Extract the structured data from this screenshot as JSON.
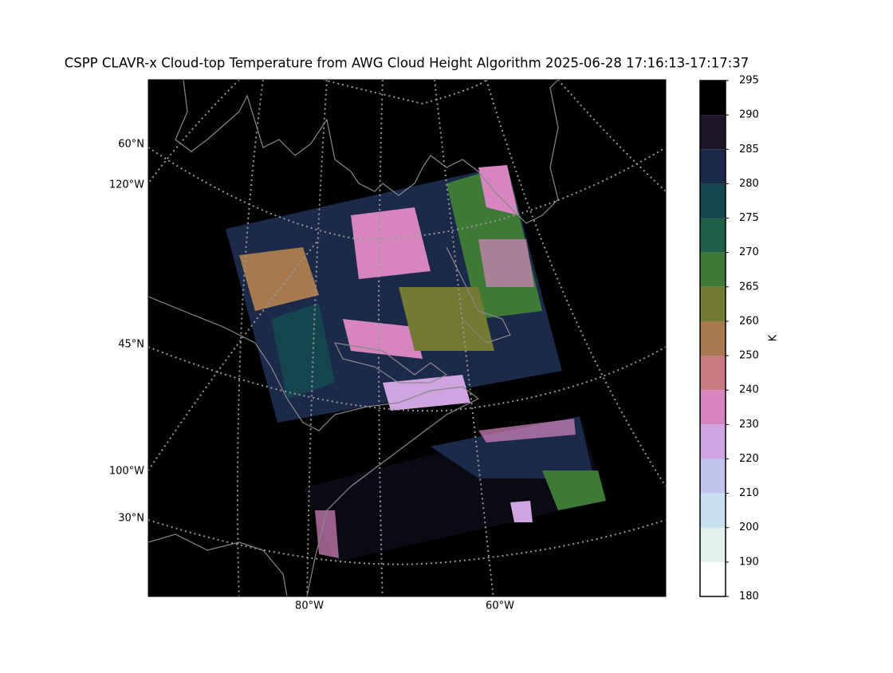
{
  "title": "CSPP CLAVR-x Cloud-top Temperature from AWG Cloud Height Algorithm 2025-06-28 17:16:13-17:17:37",
  "map": {
    "lat_labels": [
      "60°N",
      "45°N",
      "30°N"
    ],
    "left_lon_labels": [
      "120°W",
      "100°W"
    ],
    "bottom_lon_labels": [
      "80°W",
      "60°W"
    ]
  },
  "colorbar": {
    "label": "K",
    "ticks": [
      180,
      190,
      200,
      210,
      220,
      230,
      240,
      250,
      260,
      265,
      270,
      275,
      280,
      285,
      290,
      295
    ],
    "colors": [
      "#ffffff",
      "#dff2ee",
      "#c6e0f0",
      "#c3c3f0",
      "#d0a4e0",
      "#d685bf",
      "#c87a80",
      "#a67a4e",
      "#727a33",
      "#3e7a36",
      "#1f6148",
      "#154650",
      "#1c2a4a",
      "#1e1428",
      "#000000"
    ]
  }
}
